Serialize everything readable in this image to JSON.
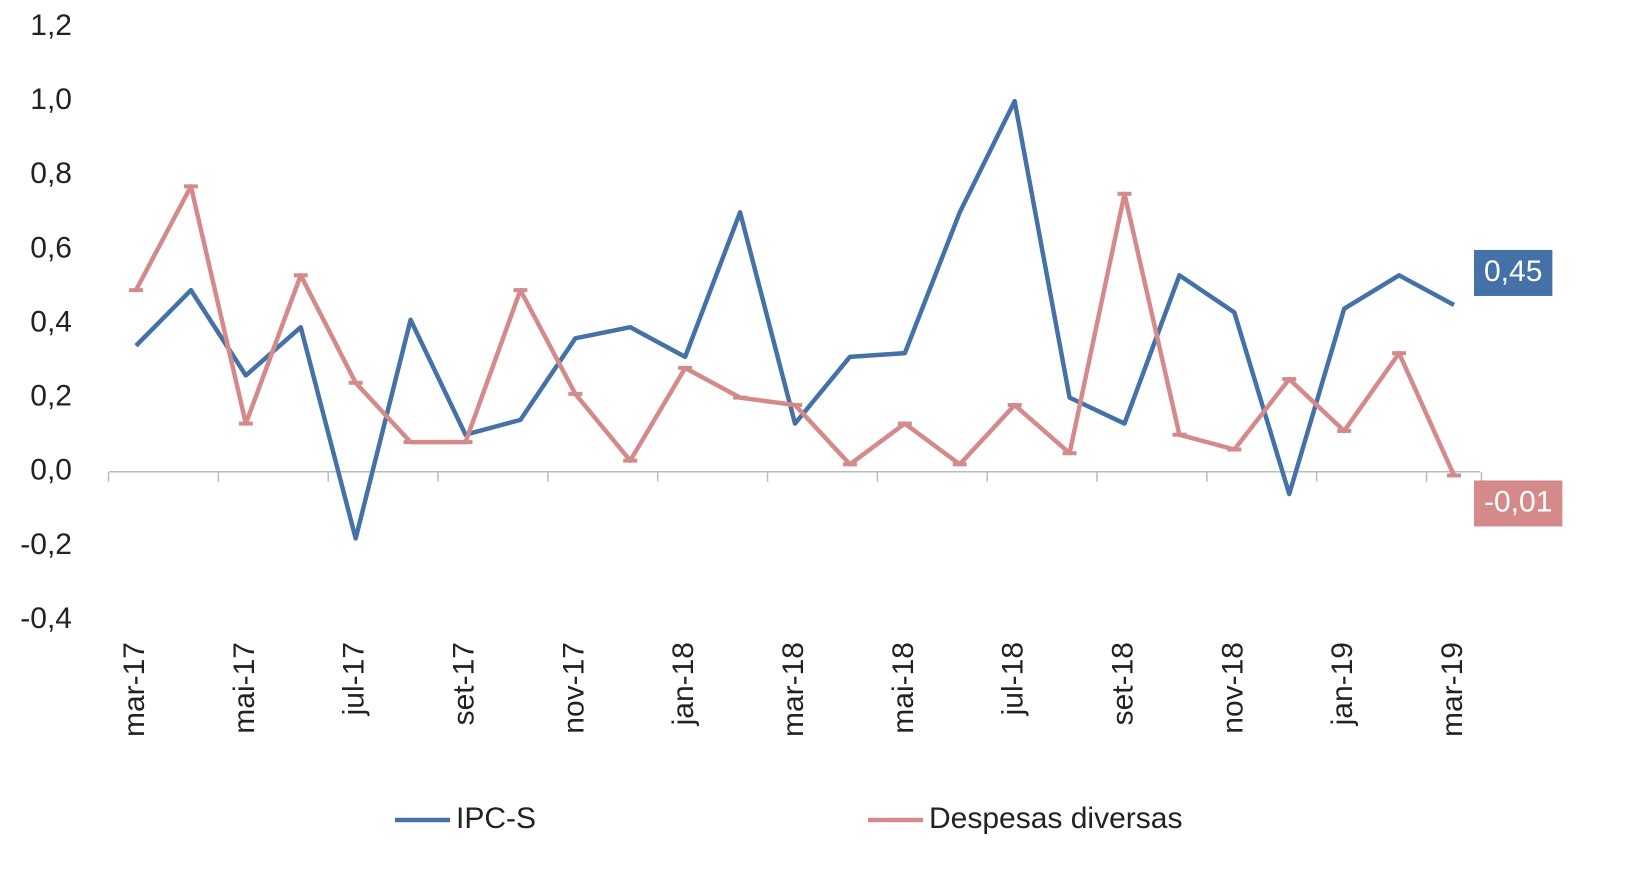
{
  "chart_data": {
    "type": "line",
    "categories": [
      "mar-17",
      null,
      "mai-17",
      null,
      "jul-17",
      null,
      "set-17",
      null,
      "nov-17",
      null,
      "jan-18",
      null,
      "mar-18",
      null,
      "mai-18",
      null,
      "jul-18",
      null,
      "set-18",
      null,
      "nov-18",
      null,
      "jan-19",
      null,
      "mar-19"
    ],
    "series": [
      {
        "name": "IPC-S",
        "color": "#4472a8",
        "values": [
          0.34,
          0.49,
          0.26,
          0.39,
          -0.18,
          0.41,
          0.1,
          0.14,
          0.36,
          0.39,
          0.31,
          0.7,
          0.13,
          0.31,
          0.32,
          0.7,
          1.0,
          0.2,
          0.13,
          0.53,
          0.43,
          -0.06,
          0.44,
          0.53,
          0.45
        ],
        "value_labels": [
          null,
          null,
          null,
          null,
          null,
          null,
          null,
          null,
          null,
          null,
          null,
          null,
          null,
          null,
          null,
          null,
          null,
          null,
          null,
          null,
          null,
          null,
          null,
          null,
          "0,45"
        ]
      },
      {
        "name": "Despesas diversas",
        "color": "#d48a8a",
        "values": [
          0.49,
          0.77,
          0.13,
          0.53,
          0.24,
          0.08,
          0.08,
          0.49,
          0.21,
          0.03,
          0.28,
          0.2,
          0.18,
          0.02,
          0.13,
          0.02,
          0.18,
          0.05,
          0.75,
          0.1,
          0.06,
          0.25,
          0.11,
          0.32,
          -0.01
        ],
        "value_labels": [
          null,
          null,
          null,
          null,
          null,
          null,
          null,
          null,
          null,
          null,
          null,
          null,
          null,
          null,
          null,
          null,
          null,
          null,
          null,
          null,
          null,
          null,
          null,
          null,
          "-0,01"
        ]
      }
    ],
    "ylim": [
      -0.4,
      1.2
    ],
    "yticks": [
      {
        "value": -0.4,
        "label": "-0,4"
      },
      {
        "value": -0.2,
        "label": "-0,2"
      },
      {
        "value": 0,
        "label": "0,0"
      },
      {
        "value": 0.2,
        "label": "0,2"
      },
      {
        "value": 0.4,
        "label": "0,4"
      },
      {
        "value": 0.6,
        "label": "0,6"
      },
      {
        "value": 0.8,
        "label": "0,8"
      },
      {
        "value": 1.0,
        "label": "1,0"
      },
      {
        "value": 1.2,
        "label": "1,2"
      }
    ],
    "grid": false,
    "legend": "bottom"
  }
}
